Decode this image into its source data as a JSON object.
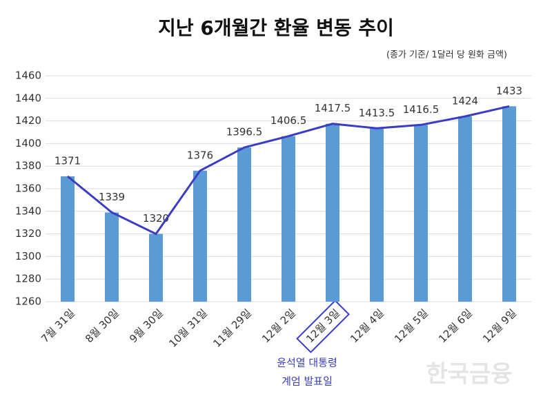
{
  "chart_data": {
    "type": "bar",
    "title": "지난 6개월간 환율 변동 추이",
    "subtitle": "(종가 기준/ 1달러 당 원화 금액)",
    "categories": [
      "7월 31일",
      "8월 30일",
      "9월 30일",
      "10월 31일",
      "11월 29일",
      "12월 2일",
      "12월 3일",
      "12월 4일",
      "12월 5일",
      "12월 6일",
      "12월 9일"
    ],
    "values": [
      1371,
      1339,
      1320,
      1376,
      1396.5,
      1406.5,
      1417.5,
      1413.5,
      1416.5,
      1424,
      1433
    ],
    "color": "#5b9bd5",
    "line": true,
    "line_color": "#3b3bc4",
    "ylim": [
      1260,
      1460
    ],
    "yticks": [
      1260,
      1280,
      1300,
      1320,
      1340,
      1360,
      1380,
      1400,
      1420,
      1440,
      1460
    ],
    "grid": true,
    "highlight": 6,
    "annotation": [
      "윤석열 대통령",
      "계엄 발표일"
    ],
    "watermark": "한국금융"
  }
}
